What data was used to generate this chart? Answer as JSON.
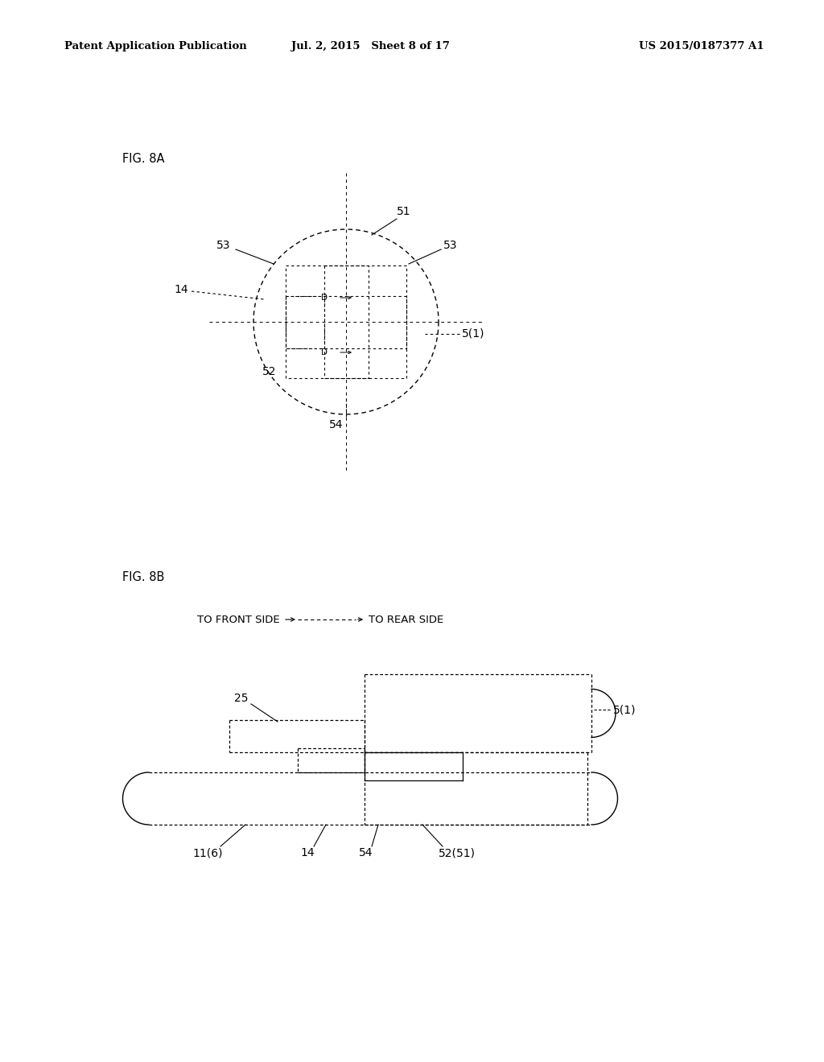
{
  "bg_color": "#ffffff",
  "header_left": "Patent Application Publication",
  "header_mid": "Jul. 2, 2015   Sheet 8 of 17",
  "header_right": "US 2015/0187377 A1",
  "fig8a_label": "FIG. 8A",
  "fig8b_label": "FIG. 8B"
}
